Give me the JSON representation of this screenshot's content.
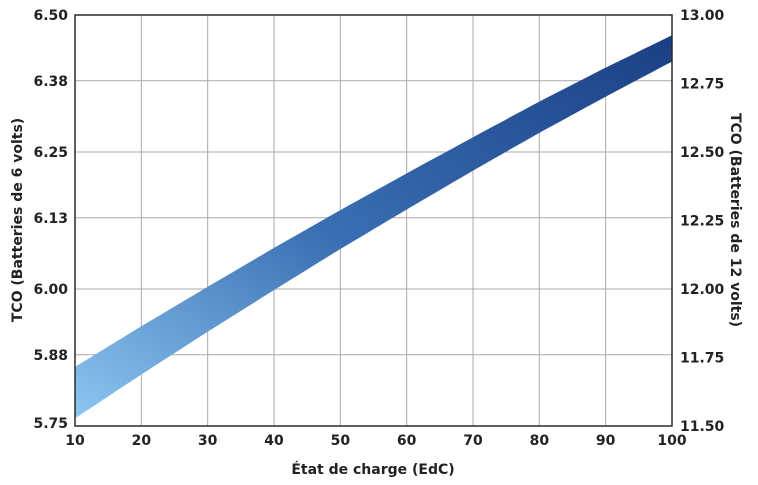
{
  "chart_data": {
    "type": "area",
    "xlabel": "État de charge (EdC)",
    "ylabel_left": "TCO (Batteries de 6 volts)",
    "ylabel_right": "TCO (Batteries de 12 volts)",
    "x_ticks": [
      "10",
      "20",
      "30",
      "40",
      "50",
      "60",
      "70",
      "80",
      "90",
      "100"
    ],
    "y_ticks_left": [
      "5.75",
      "5.88",
      "6.00",
      "6.13",
      "6.25",
      "6.38",
      "6.50"
    ],
    "y_ticks_right": [
      "11.50",
      "11.75",
      "12.00",
      "12.25",
      "12.50",
      "12.75",
      "13.00"
    ],
    "xlim": [
      10,
      100
    ],
    "ylim_left": [
      5.75,
      6.5
    ],
    "ylim_right": [
      11.5,
      13.0
    ],
    "grid": true,
    "band": {
      "x": [
        10,
        20,
        30,
        40,
        50,
        60,
        70,
        80,
        90,
        100
      ],
      "upper_6v": [
        5.858,
        5.932,
        6.004,
        6.075,
        6.144,
        6.211,
        6.277,
        6.342,
        6.404,
        6.463
      ],
      "lower_6v": [
        5.764,
        5.844,
        5.922,
        5.998,
        6.073,
        6.145,
        6.216,
        6.285,
        6.351,
        6.415
      ]
    },
    "colors": {
      "band_dark": "#1b3f84",
      "band_light": "#8cc6f0",
      "grid": "#a9a9a9",
      "frame": "#2a2a2a"
    }
  }
}
